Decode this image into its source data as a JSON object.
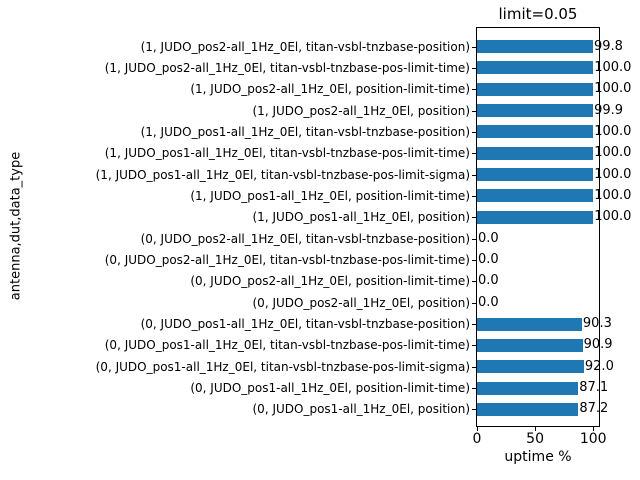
{
  "chart_data": {
    "type": "bar",
    "orientation": "horizontal",
    "title": "limit=0.05",
    "xlabel": "uptime %",
    "ylabel": "antenna,dut,data_type",
    "xlim": [
      0,
      105
    ],
    "xticks": [
      0,
      50,
      100
    ],
    "grid": false,
    "bar_color": "#1f77b4",
    "value_label_decimals": 1,
    "categories": [
      "(1, JUDO_pos2-all_1Hz_0El, titan-vsbl-tnzbase-position)",
      "(1, JUDO_pos2-all_1Hz_0El, titan-vsbl-tnzbase-pos-limit-time)",
      "(1, JUDO_pos2-all_1Hz_0El, position-limit-time)",
      "(1, JUDO_pos2-all_1Hz_0El, position)",
      "(1, JUDO_pos1-all_1Hz_0El, titan-vsbl-tnzbase-position)",
      "(1, JUDO_pos1-all_1Hz_0El, titan-vsbl-tnzbase-pos-limit-time)",
      "(1, JUDO_pos1-all_1Hz_0El, titan-vsbl-tnzbase-pos-limit-sigma)",
      "(1, JUDO_pos1-all_1Hz_0El, position-limit-time)",
      "(1, JUDO_pos1-all_1Hz_0El, position)",
      "(0, JUDO_pos2-all_1Hz_0El, titan-vsbl-tnzbase-position)",
      "(0, JUDO_pos2-all_1Hz_0El, titan-vsbl-tnzbase-pos-limit-time)",
      "(0, JUDO_pos2-all_1Hz_0El, position-limit-time)",
      "(0, JUDO_pos2-all_1Hz_0El, position)",
      "(0, JUDO_pos1-all_1Hz_0El, titan-vsbl-tnzbase-position)",
      "(0, JUDO_pos1-all_1Hz_0El, titan-vsbl-tnzbase-pos-limit-time)",
      "(0, JUDO_pos1-all_1Hz_0El, titan-vsbl-tnzbase-pos-limit-sigma)",
      "(0, JUDO_pos1-all_1Hz_0El, position-limit-time)",
      "(0, JUDO_pos1-all_1Hz_0El, position)"
    ],
    "values": [
      99.8,
      100.0,
      100.0,
      99.9,
      100.0,
      100.0,
      100.0,
      100.0,
      100.0,
      0.0,
      0.0,
      0.0,
      0.0,
      90.3,
      90.9,
      92.0,
      87.1,
      87.2
    ]
  }
}
